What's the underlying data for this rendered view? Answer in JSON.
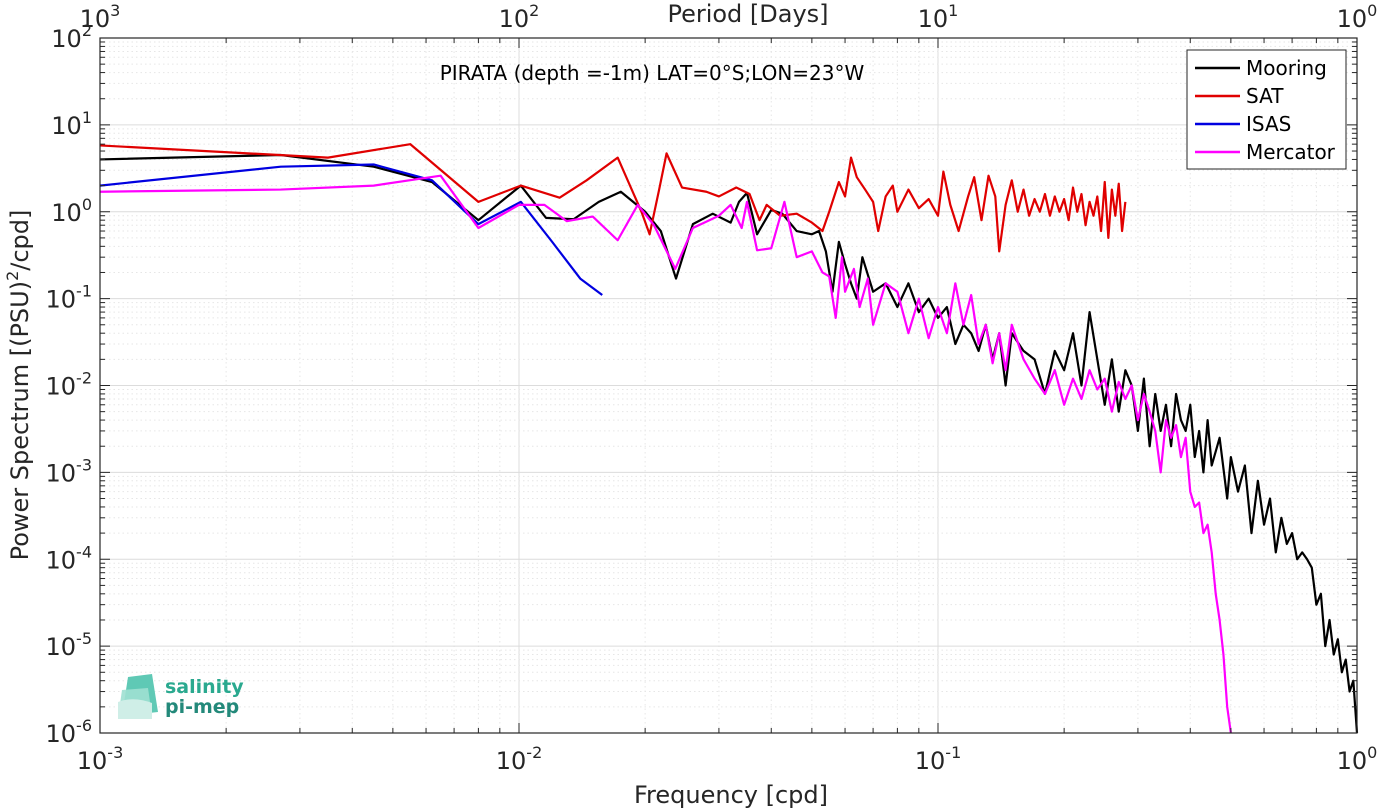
{
  "chart_data": {
    "type": "line",
    "title": "",
    "annotation": "PIRATA (depth =-1m) LAT=0°S;LON=23°W",
    "xlabel": "Frequency [cpd]",
    "ylabel_prefix": "Power Spectrum [(PSU)",
    "ylabel_sup": "2",
    "ylabel_suffix": "/cpd]",
    "top_xlabel": "Period [Days]",
    "x_scale": "log",
    "y_scale": "log",
    "xlim": [
      0.001,
      1
    ],
    "ylim": [
      1e-06,
      100
    ],
    "grid": true,
    "legend_position": "top-right",
    "x_ticks": [
      {
        "value": 0.001,
        "base": "10",
        "exp": "-3"
      },
      {
        "value": 0.01,
        "base": "10",
        "exp": "-2"
      },
      {
        "value": 0.1,
        "base": "10",
        "exp": "-1"
      },
      {
        "value": 1,
        "base": "10",
        "exp": "0"
      }
    ],
    "top_ticks": [
      {
        "value": 0.001,
        "base": "10",
        "exp": "3"
      },
      {
        "value": 0.01,
        "base": "10",
        "exp": "2"
      },
      {
        "value": 0.1,
        "base": "10",
        "exp": "1"
      },
      {
        "value": 1,
        "base": "10",
        "exp": "0"
      }
    ],
    "y_ticks": [
      {
        "value": 100,
        "base": "10",
        "exp": "2"
      },
      {
        "value": 10,
        "base": "10",
        "exp": "1"
      },
      {
        "value": 1,
        "base": "10",
        "exp": "0"
      },
      {
        "value": 0.1,
        "base": "10",
        "exp": "-1"
      },
      {
        "value": 0.01,
        "base": "10",
        "exp": "-2"
      },
      {
        "value": 0.001,
        "base": "10",
        "exp": "-3"
      },
      {
        "value": 0.0001,
        "base": "10",
        "exp": "-4"
      },
      {
        "value": 1e-05,
        "base": "10",
        "exp": "-5"
      },
      {
        "value": 1e-06,
        "base": "10",
        "exp": "-6"
      }
    ],
    "series": [
      {
        "name": "Mooring",
        "color": "#000000",
        "points": [
          [
            0.001,
            4.0
          ],
          [
            0.0027,
            4.5
          ],
          [
            0.0045,
            3.3
          ],
          [
            0.0062,
            2.2
          ],
          [
            0.008,
            0.8
          ],
          [
            0.0101,
            2.0
          ],
          [
            0.0116,
            0.85
          ],
          [
            0.0135,
            0.82
          ],
          [
            0.0155,
            1.3
          ],
          [
            0.0175,
            1.7
          ],
          [
            0.02,
            1.0
          ],
          [
            0.0218,
            0.6
          ],
          [
            0.0237,
            0.17
          ],
          [
            0.026,
            0.72
          ],
          [
            0.029,
            0.95
          ],
          [
            0.032,
            0.75
          ],
          [
            0.0335,
            1.3
          ],
          [
            0.035,
            1.65
          ],
          [
            0.037,
            0.55
          ],
          [
            0.04,
            1.05
          ],
          [
            0.0425,
            0.95
          ],
          [
            0.046,
            0.6
          ],
          [
            0.05,
            0.55
          ],
          [
            0.052,
            0.6
          ],
          [
            0.054,
            0.35
          ],
          [
            0.056,
            0.12
          ],
          [
            0.058,
            0.45
          ],
          [
            0.06,
            0.25
          ],
          [
            0.062,
            0.15
          ],
          [
            0.064,
            0.1
          ],
          [
            0.066,
            0.3
          ],
          [
            0.07,
            0.12
          ],
          [
            0.075,
            0.15
          ],
          [
            0.08,
            0.08
          ],
          [
            0.085,
            0.15
          ],
          [
            0.09,
            0.07
          ],
          [
            0.095,
            0.1
          ],
          [
            0.1,
            0.06
          ],
          [
            0.105,
            0.08
          ],
          [
            0.11,
            0.03
          ],
          [
            0.115,
            0.05
          ],
          [
            0.12,
            0.04
          ],
          [
            0.125,
            0.025
          ],
          [
            0.13,
            0.05
          ],
          [
            0.135,
            0.02
          ],
          [
            0.14,
            0.04
          ],
          [
            0.145,
            0.01
          ],
          [
            0.15,
            0.04
          ],
          [
            0.16,
            0.025
          ],
          [
            0.17,
            0.02
          ],
          [
            0.18,
            0.008
          ],
          [
            0.19,
            0.025
          ],
          [
            0.2,
            0.015
          ],
          [
            0.21,
            0.04
          ],
          [
            0.22,
            0.01
          ],
          [
            0.23,
            0.07
          ],
          [
            0.24,
            0.02
          ],
          [
            0.25,
            0.006
          ],
          [
            0.26,
            0.02
          ],
          [
            0.27,
            0.005
          ],
          [
            0.28,
            0.015
          ],
          [
            0.29,
            0.01
          ],
          [
            0.3,
            0.003
          ],
          [
            0.31,
            0.012
          ],
          [
            0.32,
            0.002
          ],
          [
            0.33,
            0.008
          ],
          [
            0.34,
            0.003
          ],
          [
            0.35,
            0.006
          ],
          [
            0.36,
            0.002
          ],
          [
            0.37,
            0.008
          ],
          [
            0.38,
            0.004
          ],
          [
            0.39,
            0.003
          ],
          [
            0.4,
            0.006
          ],
          [
            0.41,
            0.0015
          ],
          [
            0.42,
            0.003
          ],
          [
            0.43,
            0.001
          ],
          [
            0.44,
            0.004
          ],
          [
            0.45,
            0.0012
          ],
          [
            0.47,
            0.0025
          ],
          [
            0.49,
            0.0005
          ],
          [
            0.5,
            0.0015
          ],
          [
            0.52,
            0.0006
          ],
          [
            0.54,
            0.0012
          ],
          [
            0.56,
            0.0002
          ],
          [
            0.58,
            0.0008
          ],
          [
            0.6,
            0.00025
          ],
          [
            0.62,
            0.0005
          ],
          [
            0.64,
            0.00012
          ],
          [
            0.66,
            0.0003
          ],
          [
            0.68,
            0.00015
          ],
          [
            0.7,
            0.0002
          ],
          [
            0.72,
            0.0001
          ],
          [
            0.74,
            0.00012
          ],
          [
            0.76,
            0.0001
          ],
          [
            0.78,
            8e-05
          ],
          [
            0.8,
            3e-05
          ],
          [
            0.82,
            4e-05
          ],
          [
            0.84,
            1e-05
          ],
          [
            0.86,
            2e-05
          ],
          [
            0.88,
            8e-06
          ],
          [
            0.9,
            1.2e-05
          ],
          [
            0.92,
            5e-06
          ],
          [
            0.94,
            7e-06
          ],
          [
            0.96,
            3e-06
          ],
          [
            0.98,
            4e-06
          ],
          [
            1.0,
            1e-06
          ]
        ]
      },
      {
        "name": "SAT",
        "color": "#e00000",
        "points": [
          [
            0.001,
            5.8
          ],
          [
            0.0035,
            4.2
          ],
          [
            0.0055,
            6.0
          ],
          [
            0.008,
            1.3
          ],
          [
            0.0101,
            2.0
          ],
          [
            0.0125,
            1.45
          ],
          [
            0.0145,
            2.3
          ],
          [
            0.0172,
            4.2
          ],
          [
            0.0196,
            1.0
          ],
          [
            0.0205,
            0.55
          ],
          [
            0.0216,
            1.8
          ],
          [
            0.0225,
            4.7
          ],
          [
            0.0245,
            1.9
          ],
          [
            0.028,
            1.7
          ],
          [
            0.03,
            1.5
          ],
          [
            0.033,
            1.9
          ],
          [
            0.0355,
            1.6
          ],
          [
            0.0375,
            0.8
          ],
          [
            0.039,
            1.2
          ],
          [
            0.042,
            0.9
          ],
          [
            0.046,
            0.95
          ],
          [
            0.05,
            0.75
          ],
          [
            0.053,
            0.6
          ],
          [
            0.055,
            1.0
          ],
          [
            0.058,
            2.2
          ],
          [
            0.06,
            1.5
          ],
          [
            0.062,
            4.2
          ],
          [
            0.064,
            2.5
          ],
          [
            0.067,
            1.8
          ],
          [
            0.07,
            1.3
          ],
          [
            0.072,
            0.6
          ],
          [
            0.075,
            1.5
          ],
          [
            0.078,
            2.0
          ],
          [
            0.08,
            1.0
          ],
          [
            0.085,
            1.8
          ],
          [
            0.09,
            1.1
          ],
          [
            0.095,
            1.4
          ],
          [
            0.1,
            0.9
          ],
          [
            0.103,
            2.9
          ],
          [
            0.107,
            1.2
          ],
          [
            0.112,
            0.6
          ],
          [
            0.118,
            1.5
          ],
          [
            0.122,
            2.5
          ],
          [
            0.127,
            0.8
          ],
          [
            0.132,
            2.6
          ],
          [
            0.137,
            1.5
          ],
          [
            0.14,
            0.35
          ],
          [
            0.145,
            1.2
          ],
          [
            0.15,
            2.3
          ],
          [
            0.155,
            1.0
          ],
          [
            0.16,
            1.8
          ],
          [
            0.165,
            0.9
          ],
          [
            0.17,
            1.4
          ],
          [
            0.175,
            1.0
          ],
          [
            0.18,
            1.6
          ],
          [
            0.185,
            0.9
          ],
          [
            0.19,
            1.5
          ],
          [
            0.195,
            1.0
          ],
          [
            0.2,
            1.4
          ],
          [
            0.205,
            0.8
          ],
          [
            0.21,
            1.9
          ],
          [
            0.215,
            1.0
          ],
          [
            0.22,
            1.6
          ],
          [
            0.225,
            0.7
          ],
          [
            0.23,
            1.3
          ],
          [
            0.235,
            0.9
          ],
          [
            0.24,
            1.5
          ],
          [
            0.245,
            0.6
          ],
          [
            0.25,
            2.2
          ],
          [
            0.255,
            0.5
          ],
          [
            0.26,
            1.8
          ],
          [
            0.265,
            0.9
          ],
          [
            0.27,
            2.1
          ],
          [
            0.275,
            0.6
          ],
          [
            0.28,
            1.3
          ]
        ]
      },
      {
        "name": "ISAS",
        "color": "#0000e0",
        "points": [
          [
            0.001,
            2.0
          ],
          [
            0.0027,
            3.3
          ],
          [
            0.0045,
            3.5
          ],
          [
            0.0062,
            2.3
          ],
          [
            0.008,
            0.72
          ],
          [
            0.0101,
            1.3
          ],
          [
            0.012,
            0.45
          ],
          [
            0.014,
            0.17
          ],
          [
            0.0158,
            0.11
          ]
        ]
      },
      {
        "name": "Mercator",
        "color": "#ff00ff",
        "points": [
          [
            0.001,
            1.7
          ],
          [
            0.0027,
            1.8
          ],
          [
            0.0045,
            2.0
          ],
          [
            0.0065,
            2.6
          ],
          [
            0.008,
            0.65
          ],
          [
            0.01,
            1.2
          ],
          [
            0.0115,
            1.2
          ],
          [
            0.013,
            0.78
          ],
          [
            0.015,
            0.88
          ],
          [
            0.0172,
            0.47
          ],
          [
            0.0192,
            1.2
          ],
          [
            0.021,
            0.7
          ],
          [
            0.0236,
            0.22
          ],
          [
            0.026,
            0.65
          ],
          [
            0.03,
            0.9
          ],
          [
            0.032,
            1.2
          ],
          [
            0.034,
            0.65
          ],
          [
            0.035,
            1.3
          ],
          [
            0.037,
            0.36
          ],
          [
            0.04,
            0.38
          ],
          [
            0.043,
            1.3
          ],
          [
            0.046,
            0.3
          ],
          [
            0.05,
            0.35
          ],
          [
            0.053,
            0.2
          ],
          [
            0.055,
            0.18
          ],
          [
            0.057,
            0.06
          ],
          [
            0.059,
            0.3
          ],
          [
            0.06,
            0.12
          ],
          [
            0.063,
            0.22
          ],
          [
            0.065,
            0.08
          ],
          [
            0.068,
            0.17
          ],
          [
            0.07,
            0.05
          ],
          [
            0.075,
            0.15
          ],
          [
            0.08,
            0.12
          ],
          [
            0.085,
            0.04
          ],
          [
            0.09,
            0.1
          ],
          [
            0.095,
            0.035
          ],
          [
            0.1,
            0.08
          ],
          [
            0.105,
            0.04
          ],
          [
            0.11,
            0.15
          ],
          [
            0.115,
            0.05
          ],
          [
            0.12,
            0.11
          ],
          [
            0.125,
            0.03
          ],
          [
            0.13,
            0.05
          ],
          [
            0.135,
            0.018
          ],
          [
            0.14,
            0.04
          ],
          [
            0.145,
            0.015
          ],
          [
            0.15,
            0.05
          ],
          [
            0.16,
            0.02
          ],
          [
            0.17,
            0.012
          ],
          [
            0.18,
            0.008
          ],
          [
            0.19,
            0.015
          ],
          [
            0.2,
            0.006
          ],
          [
            0.21,
            0.012
          ],
          [
            0.22,
            0.007
          ],
          [
            0.23,
            0.015
          ],
          [
            0.24,
            0.009
          ],
          [
            0.25,
            0.012
          ],
          [
            0.26,
            0.005
          ],
          [
            0.27,
            0.011
          ],
          [
            0.28,
            0.007
          ],
          [
            0.29,
            0.01
          ],
          [
            0.3,
            0.004
          ],
          [
            0.31,
            0.008
          ],
          [
            0.32,
            0.005
          ],
          [
            0.33,
            0.003
          ],
          [
            0.34,
            0.001
          ],
          [
            0.35,
            0.004
          ],
          [
            0.36,
            0.0025
          ],
          [
            0.37,
            0.0035
          ],
          [
            0.38,
            0.0015
          ],
          [
            0.39,
            0.0025
          ],
          [
            0.4,
            0.0006
          ],
          [
            0.41,
            0.0004
          ],
          [
            0.42,
            0.00045
          ],
          [
            0.43,
            0.0002
          ],
          [
            0.44,
            0.00025
          ],
          [
            0.45,
            0.00012
          ],
          [
            0.46,
            4e-05
          ],
          [
            0.47,
            2e-05
          ],
          [
            0.48,
            8e-06
          ],
          [
            0.49,
            2e-06
          ],
          [
            0.5,
            1e-06
          ]
        ]
      }
    ]
  },
  "logo": {
    "line1": "salinity",
    "line2": "pi-mep"
  }
}
